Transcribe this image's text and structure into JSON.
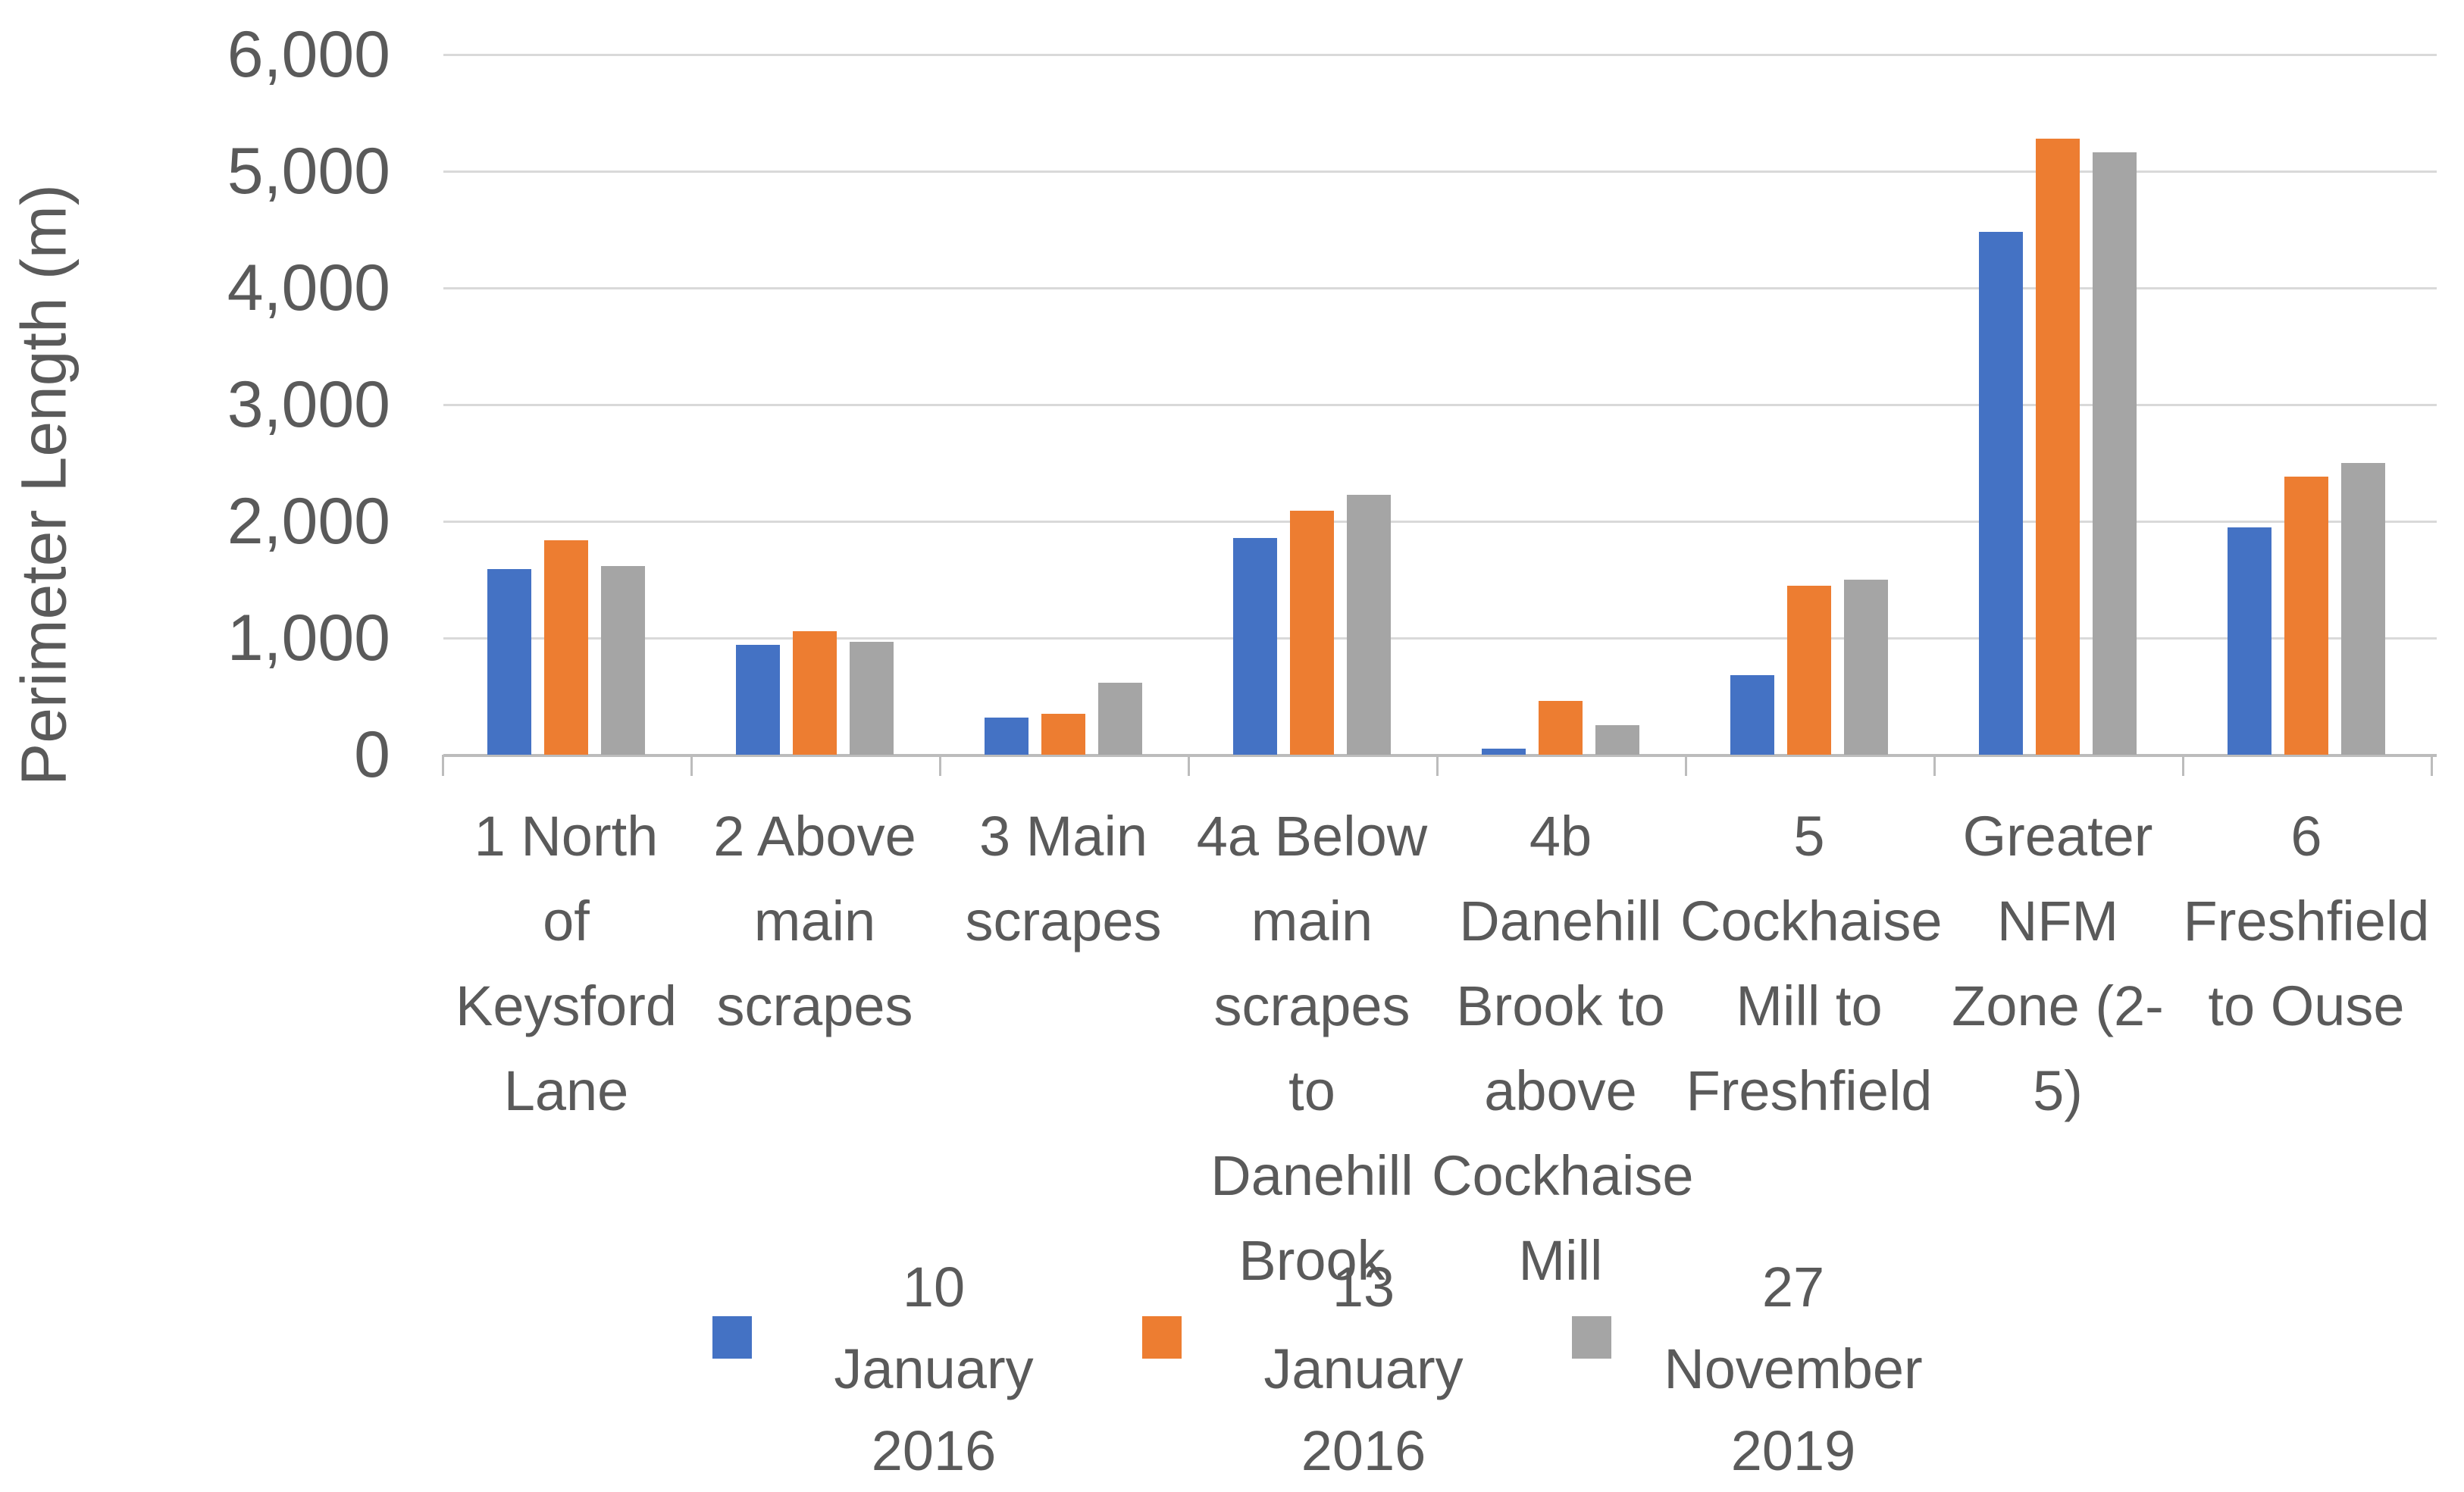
{
  "chart_data": {
    "type": "bar",
    "title": "",
    "xlabel": "",
    "ylabel": "Perimeter Length (m)",
    "ylim": [
      0,
      6000
    ],
    "ytick_interval": 1000,
    "ytick_labels": [
      "6,000",
      "5,000",
      "4,000",
      "3,000",
      "2,000",
      "1,000",
      "0"
    ],
    "grid": true,
    "legend_position": "bottom",
    "categories": [
      "1 North of Keysford Lane",
      "2 Above main scrapes",
      "3 Main scrapes",
      "4a Below main scrapes to Danehill Brook",
      "4b Danehill Brook to above Cockhaise Mill",
      "5 Cockhaise Mill to Freshfield",
      "Greater NFM Zone (2-5)",
      "6 Freshfield to Ouse"
    ],
    "category_label_lines": [
      [
        "1 North",
        "of",
        "Keysford",
        "Lane"
      ],
      [
        "2 Above",
        "main",
        "scrapes"
      ],
      [
        "3 Main",
        "scrapes"
      ],
      [
        "4a Below",
        "main",
        "scrapes",
        "to",
        "Danehill",
        "Brook"
      ],
      [
        "4b",
        "Danehill",
        "Brook to",
        "above",
        "Cockhaise",
        "Mill"
      ],
      [
        "5",
        "Cockhaise",
        "Mill to",
        "Freshfield"
      ],
      [
        "Greater",
        "NFM",
        "Zone (2-",
        "5)"
      ],
      [
        "6",
        "Freshfield",
        "to Ouse"
      ]
    ],
    "series": [
      {
        "name": "10 January 2016",
        "legend_lines": [
          "10",
          "January",
          "2016"
        ],
        "color": "#4472C4",
        "values": [
          1590,
          940,
          320,
          1860,
          50,
          680,
          4480,
          1950
        ]
      },
      {
        "name": "13 January 2016",
        "legend_lines": [
          "13",
          "January",
          "2016"
        ],
        "color": "#ED7D31",
        "values": [
          1840,
          1060,
          350,
          2090,
          460,
          1450,
          5280,
          2380
        ]
      },
      {
        "name": "27 November 2019",
        "legend_lines": [
          "27",
          "November",
          "2019"
        ],
        "color": "#A5A5A5",
        "values": [
          1620,
          970,
          620,
          2230,
          255,
          1500,
          5160,
          2500
        ]
      }
    ]
  }
}
